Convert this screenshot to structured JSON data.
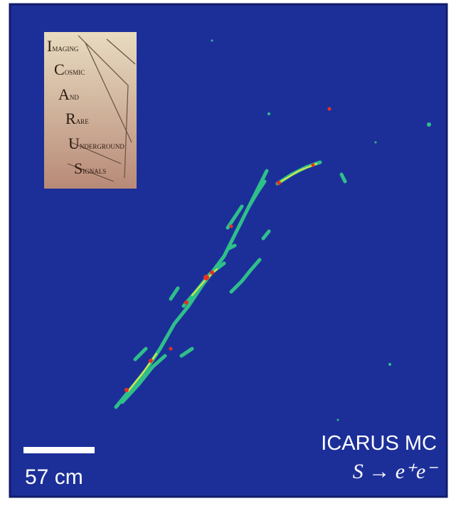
{
  "logo": {
    "lines": [
      "IMAGING",
      "COSMIC",
      "AND",
      "RARE",
      "UNDERGROUND",
      "SIGNALS"
    ]
  },
  "label": {
    "title": "ICARUS MC",
    "process": "S → e⁺e⁻"
  },
  "scale_bar": {
    "label": "57 cm"
  }
}
